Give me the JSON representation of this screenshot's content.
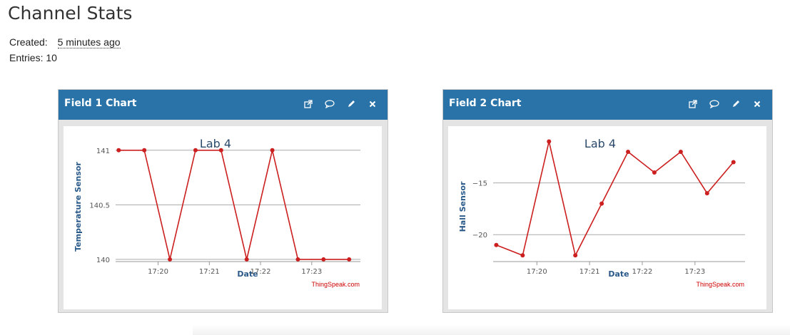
{
  "page": {
    "title": "Channel Stats",
    "created_label": "Created:",
    "created_value": "5 minutes ago",
    "entries_text": "Entries: 10"
  },
  "panels": [
    {
      "title": "Field 1 Chart",
      "header_color": "#2a73a8",
      "tools": [
        "external-link-icon",
        "comment-icon",
        "pencil-icon",
        "close-icon"
      ]
    },
    {
      "title": "Field 2 Chart",
      "header_color": "#2a73a8",
      "tools": [
        "external-link-icon",
        "comment-icon",
        "pencil-icon",
        "close-icon"
      ]
    }
  ],
  "chart_data": [
    {
      "type": "line",
      "title": "Lab 4",
      "xlabel": "Date",
      "ylabel": "Temperature Sensor",
      "credit": "ThingSpeak.com",
      "color": "#cc1f1f",
      "x_ticks": [
        "17:20",
        "17:21",
        "17:22",
        "17:23"
      ],
      "x_tick_minutes": [
        1220,
        1221,
        1222,
        1223
      ],
      "xlim_minutes": [
        1219.17,
        1223.95
      ],
      "ylim": [
        139.98,
        141.09
      ],
      "y_ticks": [
        140,
        140.5,
        141
      ],
      "series": [
        {
          "x_minutes": [
            1219.23,
            1219.73,
            1220.23,
            1220.73,
            1221.23,
            1221.73,
            1222.23,
            1222.73,
            1223.23,
            1223.73
          ],
          "values": [
            141,
            141,
            140,
            141,
            141,
            140,
            141,
            140,
            140,
            140
          ]
        }
      ]
    },
    {
      "type": "line",
      "title": "Lab 4",
      "xlabel": "Date",
      "ylabel": "Hall Sensor",
      "credit": "ThingSpeak.com",
      "color": "#cc1f1f",
      "x_ticks": [
        "17:20",
        "17:21",
        "17:22",
        "17:23"
      ],
      "x_tick_minutes": [
        1220,
        1221,
        1222,
        1223
      ],
      "xlim_minutes": [
        1219.17,
        1223.95
      ],
      "ylim": [
        -22.6,
        -10.9
      ],
      "y_ticks": [
        -15,
        -20
      ],
      "series": [
        {
          "x_minutes": [
            1219.23,
            1219.73,
            1220.23,
            1220.73,
            1221.23,
            1221.73,
            1222.23,
            1222.73,
            1223.23,
            1223.73
          ],
          "values": [
            -21,
            -22,
            -11,
            -22,
            -17,
            -12,
            -14,
            -12,
            -16,
            -13
          ]
        }
      ]
    }
  ]
}
